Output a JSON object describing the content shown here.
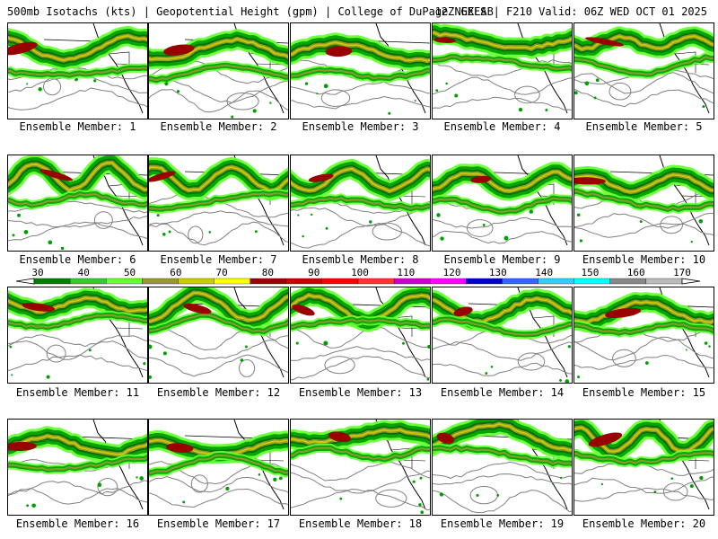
{
  "header": {
    "left_title": "500mb Isotachs (kts) | Geopotential Height (gpm) | College of DuPage NEXLAB",
    "right_title": "12Z GEFS | F210 Valid: 06Z WED OCT 01 2025"
  },
  "colorbar": {
    "labels": [
      "30",
      "40",
      "50",
      "60",
      "70",
      "80",
      "90",
      "100",
      "110",
      "120",
      "130",
      "140",
      "150",
      "160",
      "170"
    ],
    "colors": [
      "#008000",
      "#33cc33",
      "#66ff33",
      "#999933",
      "#cccc00",
      "#ffff00",
      "#990000",
      "#cc0000",
      "#ff0000",
      "#ff3333",
      "#cc00cc",
      "#ff00ff",
      "#0000cc",
      "#3366ff",
      "#33ccff",
      "#00ffff",
      "#888888",
      "#bbbbbb"
    ]
  },
  "members": [
    "Ensemble Member: 1",
    "Ensemble Member: 2",
    "Ensemble Member: 3",
    "Ensemble Member: 4",
    "Ensemble Member: 5",
    "Ensemble Member: 6",
    "Ensemble Member: 7",
    "Ensemble Member: 8",
    "Ensemble Member: 9",
    "Ensemble Member: 10",
    "Ensemble Member: 11",
    "Ensemble Member: 12",
    "Ensemble Member: 13",
    "Ensemble Member: 14",
    "Ensemble Member: 15",
    "Ensemble Member: 16",
    "Ensemble Member: 17",
    "Ensemble Member: 18",
    "Ensemble Member: 19",
    "Ensemble Member: 20"
  ],
  "jet_colors": {
    "light_green": "#66ff33",
    "green": "#00a000",
    "dark_green": "#007000",
    "olive": "#999933",
    "yellow": "#cccc00",
    "maroon": "#990000",
    "contour": "#808080",
    "border": "#000000"
  }
}
